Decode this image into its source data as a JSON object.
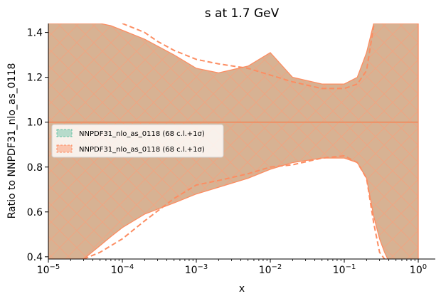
{
  "chart_data": {
    "type": "line",
    "title": "s at 1.7 GeV",
    "xlabel": "x",
    "ylabel": "Ratio to NNPDF31_nlo_as_0118",
    "x_scale": "log",
    "xlim": [
      1e-05,
      1.7
    ],
    "ylim": [
      0.39,
      1.44
    ],
    "grid": false,
    "legend_position": "center-left",
    "x_ticks": [
      {
        "value": 1e-05,
        "base": "10",
        "exp": "−5"
      },
      {
        "value": 0.0001,
        "base": "10",
        "exp": "−4"
      },
      {
        "value": 0.001,
        "base": "10",
        "exp": "−3"
      },
      {
        "value": 0.01,
        "base": "10",
        "exp": "−2"
      },
      {
        "value": 0.1,
        "base": "10",
        "exp": "−1"
      },
      {
        "value": 1,
        "base": "10",
        "exp": "0"
      }
    ],
    "y_ticks": [
      {
        "value": 0.4,
        "label": "0.4"
      },
      {
        "value": 0.6,
        "label": "0.6"
      },
      {
        "value": 0.8,
        "label": "0.8"
      },
      {
        "value": 1.0,
        "label": "1.0"
      },
      {
        "value": 1.2,
        "label": "1.2"
      },
      {
        "value": 1.4,
        "label": "1.4"
      }
    ],
    "series": [
      {
        "name": "NNPDF31_nlo_as_0118 (68 c.l.+1σ)",
        "color": "#66c2a5",
        "hatch": "\\\\",
        "x": [
          1e-05,
          1
        ],
        "central": [
          1.0,
          1.0
        ],
        "lower": [
          1.0,
          1.0
        ],
        "upper": [
          1.0,
          1.0
        ]
      },
      {
        "name": "NNPDF31_nlo_as_0118 (68 c.l.+1σ)",
        "color": "#fc8d62",
        "hatch": "x",
        "x": [
          1e-05,
          2e-05,
          3e-05,
          5e-05,
          7e-05,
          0.0001,
          0.0002,
          0.0005,
          0.001,
          0.002,
          0.005,
          0.01,
          0.02,
          0.05,
          0.1,
          0.15,
          0.2,
          0.25,
          0.3,
          0.35,
          0.4,
          0.5,
          0.6,
          0.7,
          0.8,
          1.0
        ],
        "central": [
          1.0,
          1.0,
          1.0,
          1.0,
          1.0,
          1.0,
          1.0,
          1.0,
          1.0,
          1.0,
          1.0,
          1.0,
          1.0,
          1.0,
          1.0,
          1.0,
          1.0,
          1.0,
          1.0,
          1.0,
          1.0,
          1.0,
          1.0,
          1.0,
          1.0,
          1.0
        ],
        "lower": [
          0.39,
          0.39,
          0.39,
          0.45,
          0.49,
          0.53,
          0.59,
          0.64,
          0.68,
          0.71,
          0.75,
          0.79,
          0.82,
          0.84,
          0.84,
          0.82,
          0.75,
          0.58,
          0.48,
          0.42,
          0.38,
          0.35,
          0.33,
          0.32,
          0.31,
          0.3
        ],
        "upper": [
          1.44,
          1.44,
          1.44,
          1.44,
          1.43,
          1.41,
          1.37,
          1.3,
          1.24,
          1.22,
          1.25,
          1.31,
          1.2,
          1.17,
          1.17,
          1.2,
          1.31,
          1.44,
          1.44,
          1.44,
          1.44,
          1.44,
          1.44,
          1.44,
          1.44,
          1.44
        ]
      },
      {
        "name": "",
        "color": "#fc8d62",
        "style": "dashed",
        "role": "upper edge",
        "x": [
          0.0001,
          0.0002,
          0.0003,
          0.0005,
          0.001,
          0.002,
          0.005,
          0.01,
          0.02,
          0.05,
          0.1,
          0.15,
          0.2,
          0.25
        ],
        "values": [
          1.44,
          1.4,
          1.36,
          1.32,
          1.28,
          1.26,
          1.24,
          1.21,
          1.18,
          1.15,
          1.15,
          1.17,
          1.23,
          1.43
        ]
      },
      {
        "name": "",
        "color": "#fc8d62",
        "style": "dashed",
        "role": "lower edge",
        "x": [
          3e-05,
          5e-05,
          0.0001,
          0.0002,
          0.0005,
          0.001,
          0.002,
          0.005,
          0.01,
          0.02,
          0.05,
          0.1,
          0.15,
          0.2,
          0.25,
          0.3,
          0.35
        ],
        "values": [
          0.39,
          0.42,
          0.48,
          0.56,
          0.66,
          0.72,
          0.74,
          0.77,
          0.8,
          0.81,
          0.84,
          0.85,
          0.82,
          0.75,
          0.55,
          0.42,
          0.39
        ]
      }
    ],
    "legend": [
      {
        "label": "NNPDF31_nlo_as_0118 (68 c.l.+1σ)",
        "color": "#66c2a5"
      },
      {
        "label": "NNPDF31_nlo_as_0118 (68 c.l.+1σ)",
        "color": "#fc8d62"
      }
    ]
  }
}
